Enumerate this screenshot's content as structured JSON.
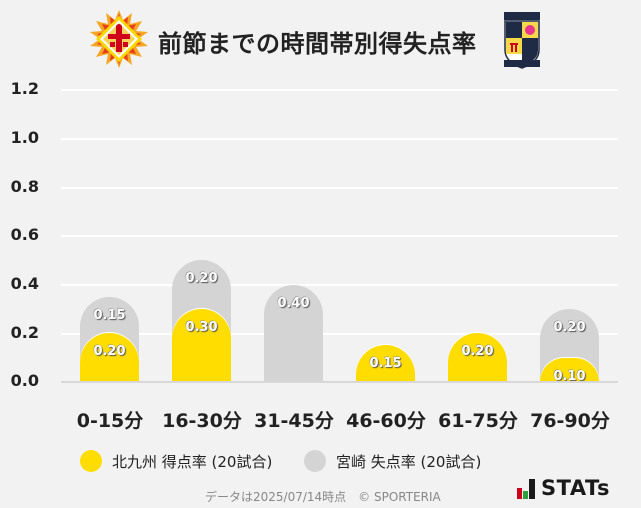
{
  "header": {
    "title": "前節までの時間帯別得失点率",
    "home_logo": "kitakyushu-crest-icon",
    "away_logo": "miyazaki-crest-icon"
  },
  "colors": {
    "background": "#f2f2f2",
    "home": "#ffdd00",
    "away": "#d4d4d4",
    "gridline": "#ffffff"
  },
  "chart_data": {
    "type": "bar",
    "title": "前節までの時間帯別得失点率",
    "stacked": true,
    "categories": [
      "0-15分",
      "16-30分",
      "31-45分",
      "46-60分",
      "61-75分",
      "76-90分"
    ],
    "series": [
      {
        "name": "北九州 得点率 (20試合)",
        "color": "#ffdd00",
        "values": [
          0.2,
          0.3,
          0.0,
          0.15,
          0.2,
          0.1
        ]
      },
      {
        "name": "宮崎 失点率 (20試合)",
        "color": "#d4d4d4",
        "values": [
          0.15,
          0.2,
          0.4,
          0.0,
          0.0,
          0.2
        ]
      }
    ],
    "yticks": [
      "0.0",
      "0.2",
      "0.4",
      "0.6",
      "0.8",
      "1.0",
      "1.2"
    ],
    "ylim": [
      0,
      1.2
    ],
    "xlabel": "",
    "ylabel": "",
    "grid": true,
    "legend_position": "bottom"
  },
  "legend": [
    {
      "label": "北九州 得点率 (20試合)",
      "color": "#ffdd00"
    },
    {
      "label": "宮崎 失点率 (20試合)",
      "color": "#d4d4d4"
    }
  ],
  "footer": {
    "note": "データは2025/07/14時点　© SPORTERIA",
    "brand": "STATs"
  }
}
